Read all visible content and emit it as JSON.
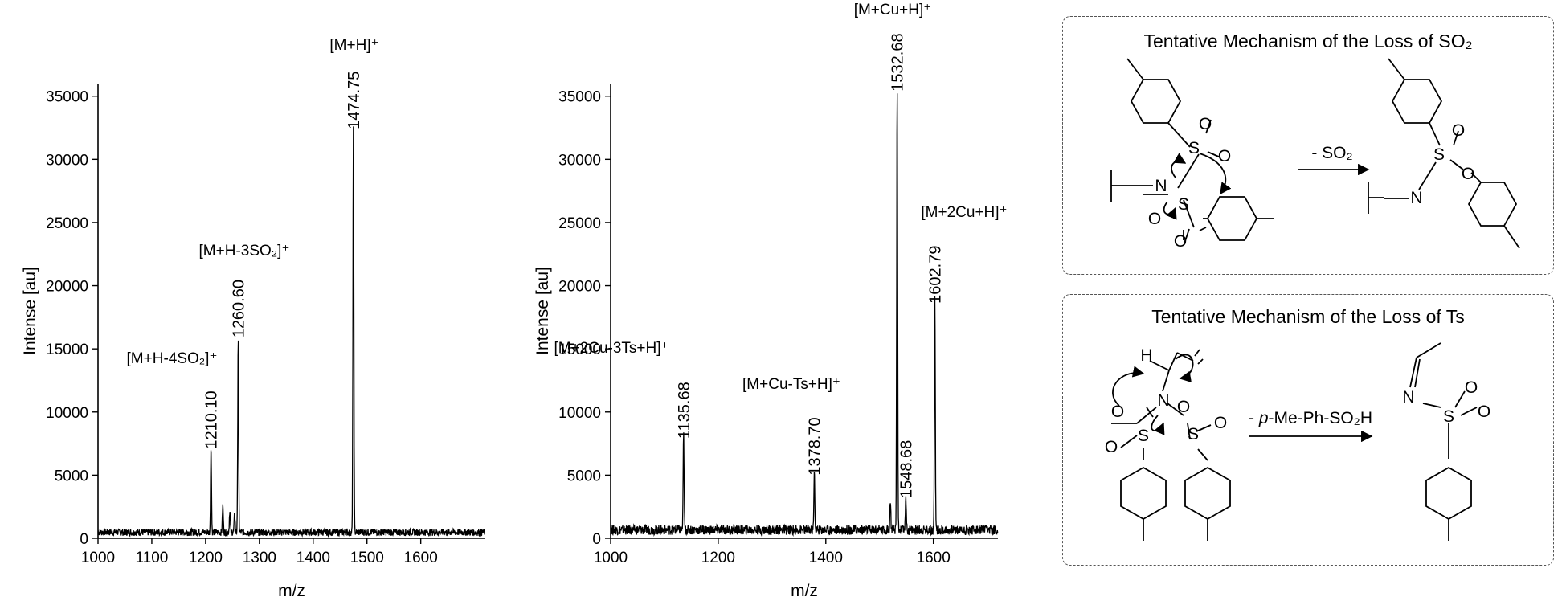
{
  "chart_data": [
    {
      "type": "line",
      "xlabel": "m/z",
      "ylabel": "Intense [au]",
      "xlim": [
        1000,
        1720
      ],
      "ylim": [
        0,
        36000
      ],
      "x_ticks": [
        "1000",
        "1100",
        "1200",
        "1300",
        "1400",
        "1500",
        "1600"
      ],
      "y_ticks": [
        "0",
        "5000",
        "10000",
        "15000",
        "20000",
        "25000",
        "30000",
        "35000"
      ],
      "baseline": 500,
      "peaks": [
        {
          "mz": 1210.1,
          "intensity": 6700,
          "label": "1210.10"
        },
        {
          "mz": 1232.0,
          "intensity": 2100,
          "label": ""
        },
        {
          "mz": 1245.0,
          "intensity": 1700,
          "label": ""
        },
        {
          "mz": 1254.0,
          "intensity": 1500,
          "label": ""
        },
        {
          "mz": 1260.6,
          "intensity": 15500,
          "label": "1260.60"
        },
        {
          "mz": 1474.75,
          "intensity": 32000,
          "label": "1474.75"
        }
      ],
      "annotations": [
        {
          "text": "[M+H-4SO₂]⁺",
          "mz": 1210.1
        },
        {
          "text": "[M+H-3SO₂]⁺",
          "mz": 1260.6
        },
        {
          "text": "[M+H]⁺",
          "mz": 1474.75
        }
      ]
    },
    {
      "type": "line",
      "xlabel": "m/z",
      "ylabel": "Intense [au]",
      "xlim": [
        1000,
        1720
      ],
      "ylim": [
        0,
        36000
      ],
      "x_ticks": [
        "1000",
        "1200",
        "1400",
        "1600"
      ],
      "y_ticks": [
        "0",
        "5000",
        "10000",
        "15000",
        "20000",
        "25000",
        "30000",
        "35000"
      ],
      "baseline": 700,
      "peaks": [
        {
          "mz": 1135.68,
          "intensity": 7500,
          "label": "1135.68"
        },
        {
          "mz": 1378.7,
          "intensity": 4600,
          "label": "1378.70"
        },
        {
          "mz": 1520.0,
          "intensity": 2300,
          "label": ""
        },
        {
          "mz": 1532.68,
          "intensity": 35000,
          "label": "1532.68"
        },
        {
          "mz": 1548.68,
          "intensity": 2800,
          "label": "1548.68"
        },
        {
          "mz": 1602.79,
          "intensity": 18200,
          "label": "1602.79"
        }
      ],
      "annotations": [
        {
          "text": "[M+2Cu-3Ts+H]⁺",
          "mz": 1135.68
        },
        {
          "text": "[M+Cu-Ts+H]⁺",
          "mz": 1378.7
        },
        {
          "text": "[M+Cu+H]⁺",
          "mz": 1532.68
        },
        {
          "text": "[M+2Cu+H]⁺",
          "mz": 1602.79
        }
      ]
    }
  ],
  "mechanisms": {
    "so2": {
      "title": "Tentative Mechanism of the Loss of SO₂",
      "reagent": "- SO₂",
      "atoms": {
        "s": "S",
        "o": "O",
        "n": "N"
      }
    },
    "ts": {
      "title": "Tentative Mechanism of the Loss of Ts",
      "reagent_prefix": "- ",
      "reagent_italic": "p",
      "reagent_suffix": "-Me-Ph-SO₂H",
      "atoms": {
        "s": "S",
        "o": "O",
        "n": "N",
        "h": "H"
      }
    }
  }
}
